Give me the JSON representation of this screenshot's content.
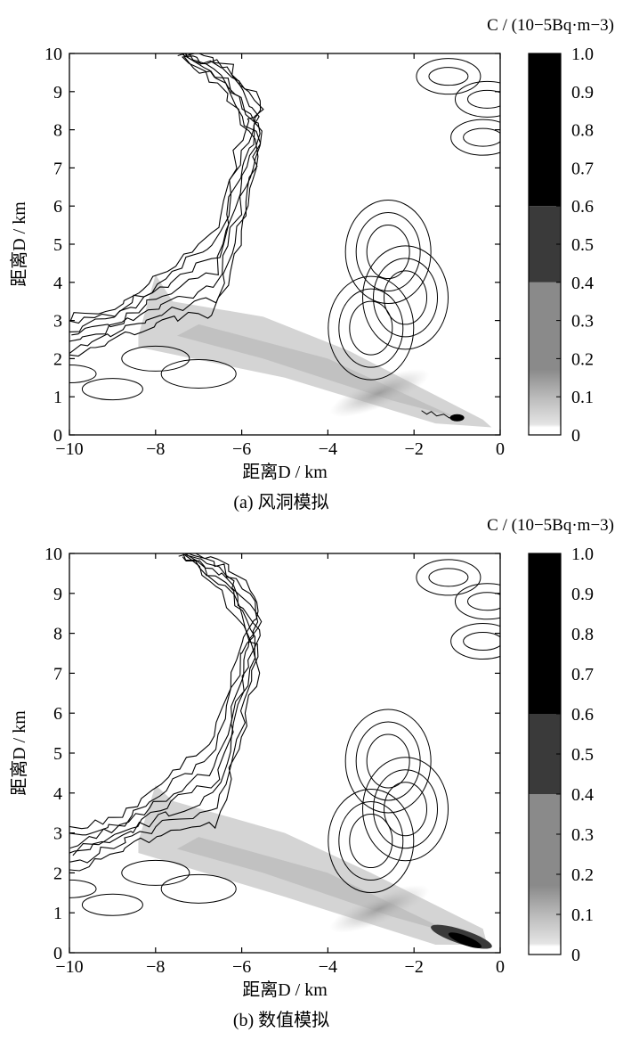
{
  "chart_data": [
    {
      "type": "heatmap",
      "caption": "(a) 风洞模拟",
      "xlabel": "距离D / km",
      "ylabel": "距离D / km",
      "x_ticks": [
        "−10",
        "−8",
        "−6",
        "−4",
        "−2",
        "0"
      ],
      "y_ticks": [
        "0",
        "1",
        "2",
        "3",
        "4",
        "5",
        "6",
        "7",
        "8",
        "9",
        "10"
      ],
      "xlim": [
        -10,
        0
      ],
      "ylim": [
        0,
        10
      ],
      "colorbar": {
        "title": "C / (10−5Bq·m−3)",
        "ticks": [
          "0",
          "0.1",
          "0.2",
          "0.3",
          "0.4",
          "0.5",
          "0.6",
          "0.7",
          "0.8",
          "0.9",
          "1.0"
        ],
        "range": [
          0,
          1.0
        ],
        "levels": [
          {
            "from": 0.0,
            "to": 0.02,
            "color": "#ffffff"
          },
          {
            "from": 0.02,
            "to": 0.2,
            "color": "#d6d6d6"
          },
          {
            "from": 0.2,
            "to": 0.4,
            "color": "#9c9c9c"
          },
          {
            "from": 0.4,
            "to": 0.6,
            "color": "#3a3a3a"
          },
          {
            "from": 0.6,
            "to": 1.0,
            "color": "#000000"
          }
        ]
      },
      "plume": {
        "polygon": [
          [
            -8.4,
            2.6
          ],
          [
            -8.0,
            4.2
          ],
          [
            -7.6,
            3.5
          ],
          [
            -5.5,
            3.1
          ],
          [
            -3.5,
            2.2
          ],
          [
            -0.4,
            0.4
          ],
          [
            -0.2,
            0.2
          ],
          [
            -1.5,
            0.3
          ],
          [
            -5.0,
            1.5
          ],
          [
            -8.4,
            2.3
          ]
        ],
        "max_point": [
          -1.0,
          0.45
        ],
        "max_value": 0.6
      }
    },
    {
      "type": "heatmap",
      "caption": "(b) 数值模拟",
      "xlabel": "距离D / km",
      "ylabel": "距离D / km",
      "x_ticks": [
        "−10",
        "−8",
        "−6",
        "−4",
        "−2",
        "0"
      ],
      "y_ticks": [
        "0",
        "1",
        "2",
        "3",
        "4",
        "5",
        "6",
        "7",
        "8",
        "9",
        "10"
      ],
      "xlim": [
        -10,
        0
      ],
      "ylim": [
        0,
        10
      ],
      "colorbar": {
        "title": "C / (10−5Bq·m−3)",
        "ticks": [
          "0",
          "0.1",
          "0.2",
          "0.3",
          "0.4",
          "0.5",
          "0.6",
          "0.7",
          "0.8",
          "0.9",
          "1.0"
        ],
        "range": [
          0,
          1.0
        ],
        "levels": [
          {
            "from": 0.0,
            "to": 0.02,
            "color": "#ffffff"
          },
          {
            "from": 0.02,
            "to": 0.2,
            "color": "#d6d6d6"
          },
          {
            "from": 0.2,
            "to": 0.4,
            "color": "#9c9c9c"
          },
          {
            "from": 0.4,
            "to": 0.6,
            "color": "#3a3a3a"
          },
          {
            "from": 0.6,
            "to": 1.0,
            "color": "#000000"
          }
        ]
      },
      "plume": {
        "polygon": [
          [
            -8.4,
            2.8
          ],
          [
            -8.0,
            4.2
          ],
          [
            -7.6,
            3.8
          ],
          [
            -5.0,
            3.0
          ],
          [
            -3.0,
            2.0
          ],
          [
            -0.4,
            0.6
          ],
          [
            -0.3,
            0.2
          ],
          [
            -1.5,
            0.2
          ],
          [
            -5.0,
            1.4
          ],
          [
            -8.4,
            2.5
          ]
        ],
        "max_point": [
          -0.9,
          0.4
        ],
        "max_value": 1.0
      }
    }
  ]
}
